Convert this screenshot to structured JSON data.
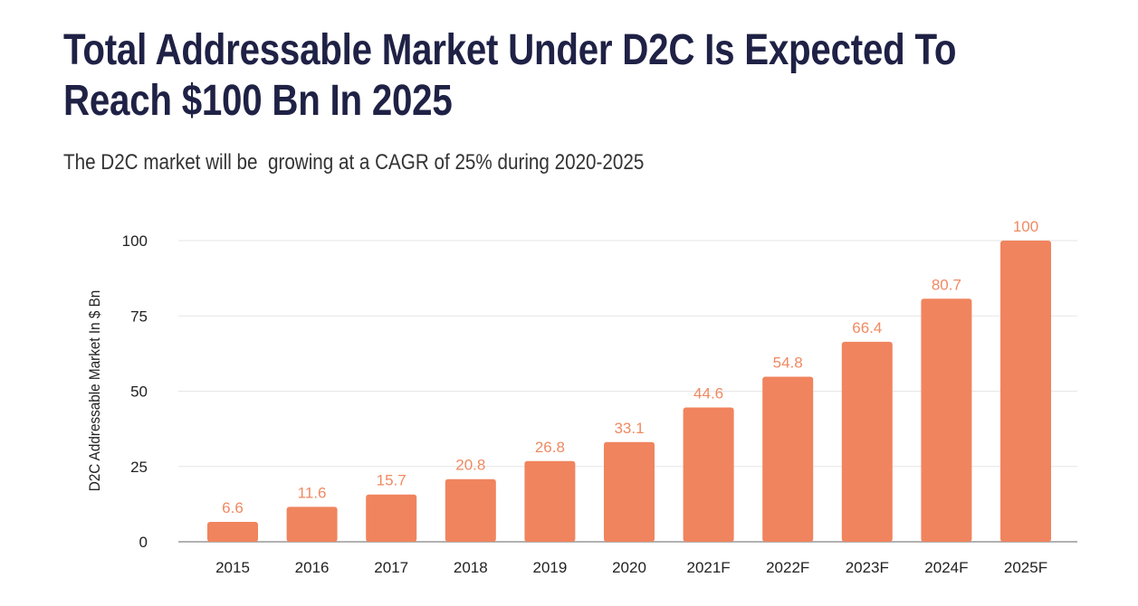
{
  "chart_data": {
    "type": "bar",
    "title": "Total Addressable Market Under D2C Is Expected To Reach $100 Bn In 2025",
    "subtitle": "The D2C market will be  growing at a CAGR of 25% during 2020-2025",
    "xlabel": "",
    "ylabel": "D2C Addressable Market In $ Bn",
    "ylim": [
      0,
      100
    ],
    "yticks": [
      0,
      25,
      50,
      75,
      100
    ],
    "grid": true,
    "categories": [
      "2015",
      "2016",
      "2017",
      "2018",
      "2019",
      "2020",
      "2021F",
      "2022F",
      "2023F",
      "2024F",
      "2025F"
    ],
    "values": [
      6.6,
      11.6,
      15.7,
      20.8,
      26.8,
      33.1,
      44.6,
      54.8,
      66.4,
      80.7,
      100
    ],
    "data_labels": [
      "6.6",
      "11.6",
      "15.7",
      "20.8",
      "26.8",
      "33.1",
      "44.6",
      "54.8",
      "66.4",
      "80.7",
      "100"
    ],
    "colors": {
      "bar": "#f0845e",
      "label": "#ef8a62",
      "title": "#1f2145"
    }
  }
}
